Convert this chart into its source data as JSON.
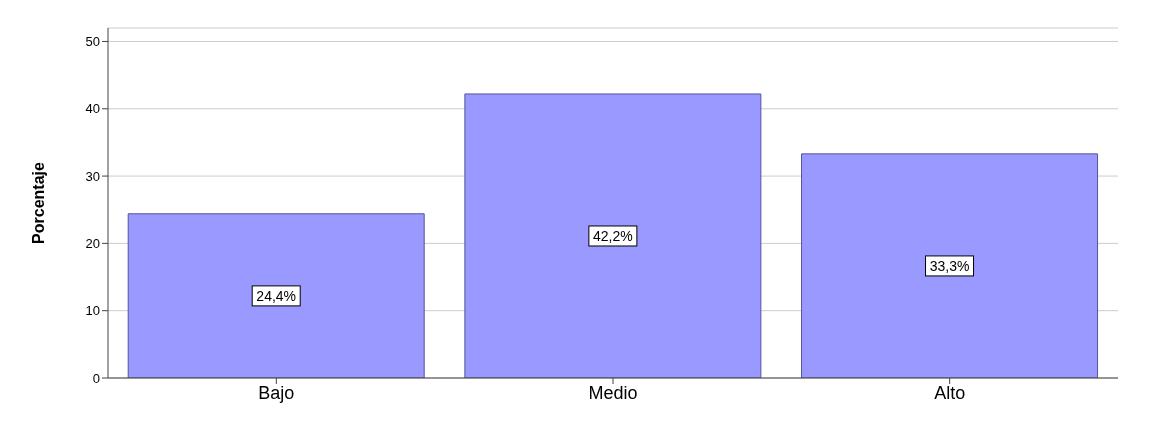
{
  "chart_data": {
    "type": "bar",
    "ylabel": "Porcentaje",
    "categories": [
      "Bajo",
      "Medio",
      "Alto"
    ],
    "values": [
      24.4,
      42.2,
      33.3
    ],
    "value_labels": [
      "24,4%",
      "42,2%",
      "33,3%"
    ],
    "color": "#9999ff",
    "ylim": [
      0,
      52
    ],
    "yticks": [
      0,
      10,
      20,
      30,
      40,
      50
    ],
    "grid": "y"
  }
}
